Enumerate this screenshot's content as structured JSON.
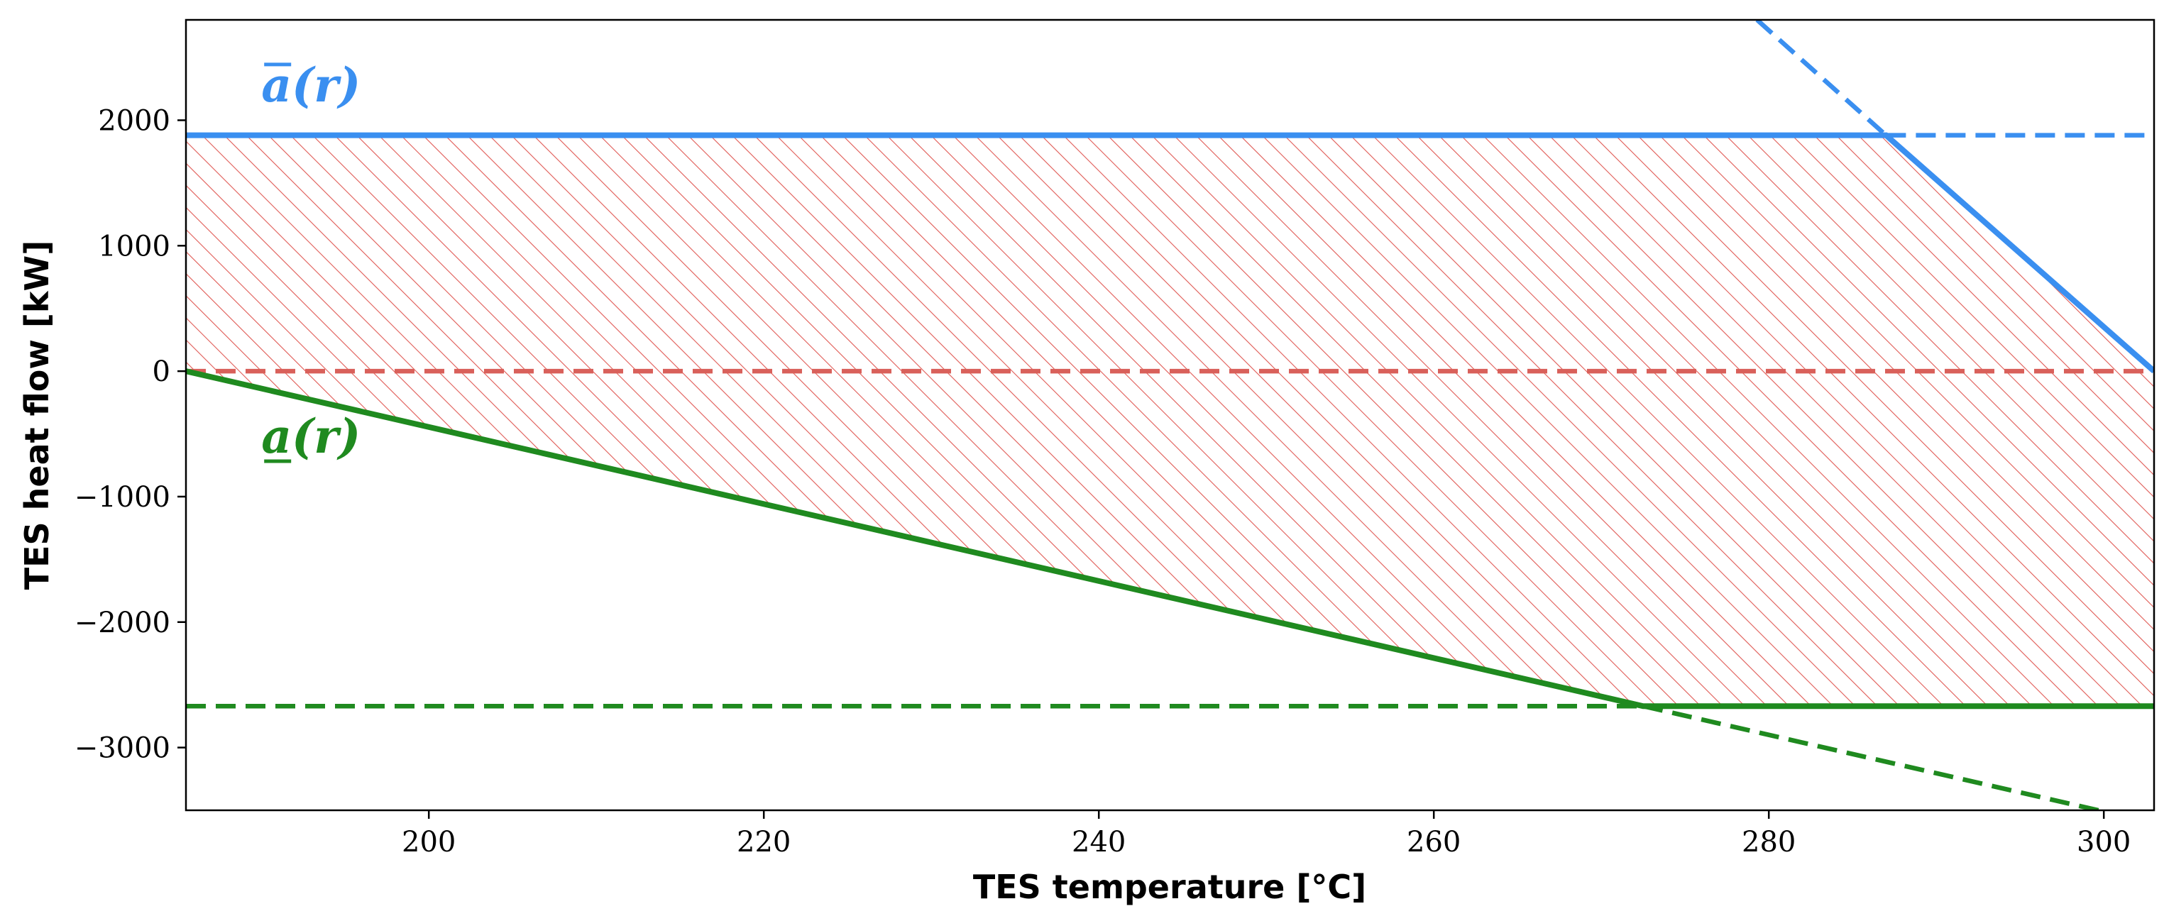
{
  "chart_data": {
    "type": "line",
    "title": "",
    "xlabel": "TES temperature [°C]",
    "ylabel": "TES heat flow [kW]",
    "xlim": [
      185.5,
      303
    ],
    "ylim": [
      -3500,
      2800
    ],
    "xticks": [
      200,
      220,
      240,
      260,
      280,
      300
    ],
    "yticks": [
      -3000,
      -2000,
      -1000,
      0,
      1000,
      2000
    ],
    "xtick_labels": [
      "200",
      "220",
      "240",
      "260",
      "280",
      "300"
    ],
    "ytick_labels": [
      "−3000",
      "−2000",
      "−1000",
      "0",
      "1000",
      "2000"
    ],
    "grid": false,
    "legend": "none",
    "annotations": [
      {
        "text": "a(r)",
        "decoration": "overline",
        "color": "#3a8ff0",
        "x": 190,
        "y": 2150
      },
      {
        "text": "a(r)",
        "decoration": "underline",
        "color": "#1f8a1f",
        "x": 190,
        "y": -650
      }
    ],
    "series": [
      {
        "style": "solid",
        "color": "#3a8ff0",
        "x": [
          185.5,
          287,
          303
        ],
        "y": [
          1880,
          1880,
          0
        ]
      },
      {
        "style": "dashed",
        "color": "#3a8ff0",
        "x": [
          287,
          303
        ],
        "y": [
          1880,
          1880
        ]
      },
      {
        "style": "dashed",
        "color": "#3a8ff0",
        "x": [
          279.3,
          287
        ],
        "y": [
          2800,
          1880
        ]
      },
      {
        "style": "solid",
        "color": "#1f8a1f",
        "x": [
          185.5,
          272.5,
          303
        ],
        "y": [
          0,
          -2670,
          -2670
        ]
      },
      {
        "style": "dashed",
        "color": "#1f8a1f",
        "x": [
          185.5,
          272.5
        ],
        "y": [
          -2670,
          -2670
        ]
      },
      {
        "style": "dashed",
        "color": "#1f8a1f",
        "x": [
          272.5,
          300
        ],
        "y": [
          -2670,
          -3510
        ]
      },
      {
        "style": "dashed",
        "color": "#d9605a",
        "x": [
          185.5,
          303
        ],
        "y": [
          0,
          0
        ]
      }
    ],
    "feasible_region": {
      "fill": "hatch",
      "color": "#e05a55",
      "x": [
        185.5,
        287,
        303,
        272.5,
        303
      ],
      "upper": "blue-solid",
      "lower": "green-solid"
    }
  }
}
